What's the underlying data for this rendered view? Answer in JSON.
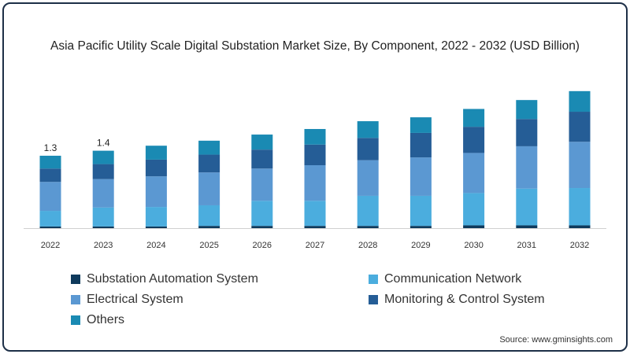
{
  "chart_data": {
    "type": "bar",
    "stacked": true,
    "title": "Asia Pacific Utility Scale Digital Substation Market Size, By Component, 2022 - 2032 (USD Billion)",
    "xlabel": "",
    "ylabel": "",
    "ylim": [
      0,
      2.6
    ],
    "grid": false,
    "legend_placement": "bottom",
    "categories": [
      "2022",
      "2023",
      "2024",
      "2025",
      "2026",
      "2027",
      "2028",
      "2029",
      "2030",
      "2031",
      "2032"
    ],
    "series": [
      {
        "name": "Substation Automation System",
        "color": "#0e3a5c",
        "values": [
          0.03,
          0.03,
          0.03,
          0.04,
          0.04,
          0.04,
          0.04,
          0.04,
          0.05,
          0.05,
          0.05
        ]
      },
      {
        "name": "Communication Network",
        "color": "#4badde",
        "values": [
          0.28,
          0.34,
          0.35,
          0.37,
          0.45,
          0.45,
          0.54,
          0.54,
          0.58,
          0.66,
          0.67
        ]
      },
      {
        "name": "Electrical System",
        "color": "#5b98d2",
        "values": [
          0.52,
          0.51,
          0.55,
          0.59,
          0.58,
          0.64,
          0.64,
          0.69,
          0.72,
          0.76,
          0.83
        ]
      },
      {
        "name": "Monitoring & Control System",
        "color": "#255d96",
        "values": [
          0.24,
          0.27,
          0.3,
          0.32,
          0.34,
          0.37,
          0.4,
          0.44,
          0.47,
          0.49,
          0.54
        ]
      },
      {
        "name": "Others",
        "color": "#1a8ab3",
        "values": [
          0.23,
          0.24,
          0.25,
          0.25,
          0.27,
          0.28,
          0.3,
          0.28,
          0.32,
          0.34,
          0.37
        ]
      }
    ],
    "data_labels": [
      {
        "category": "2022",
        "text": "1.3"
      },
      {
        "category": "2023",
        "text": "1.4"
      }
    ]
  },
  "source": "Source: www.gminsights.com"
}
